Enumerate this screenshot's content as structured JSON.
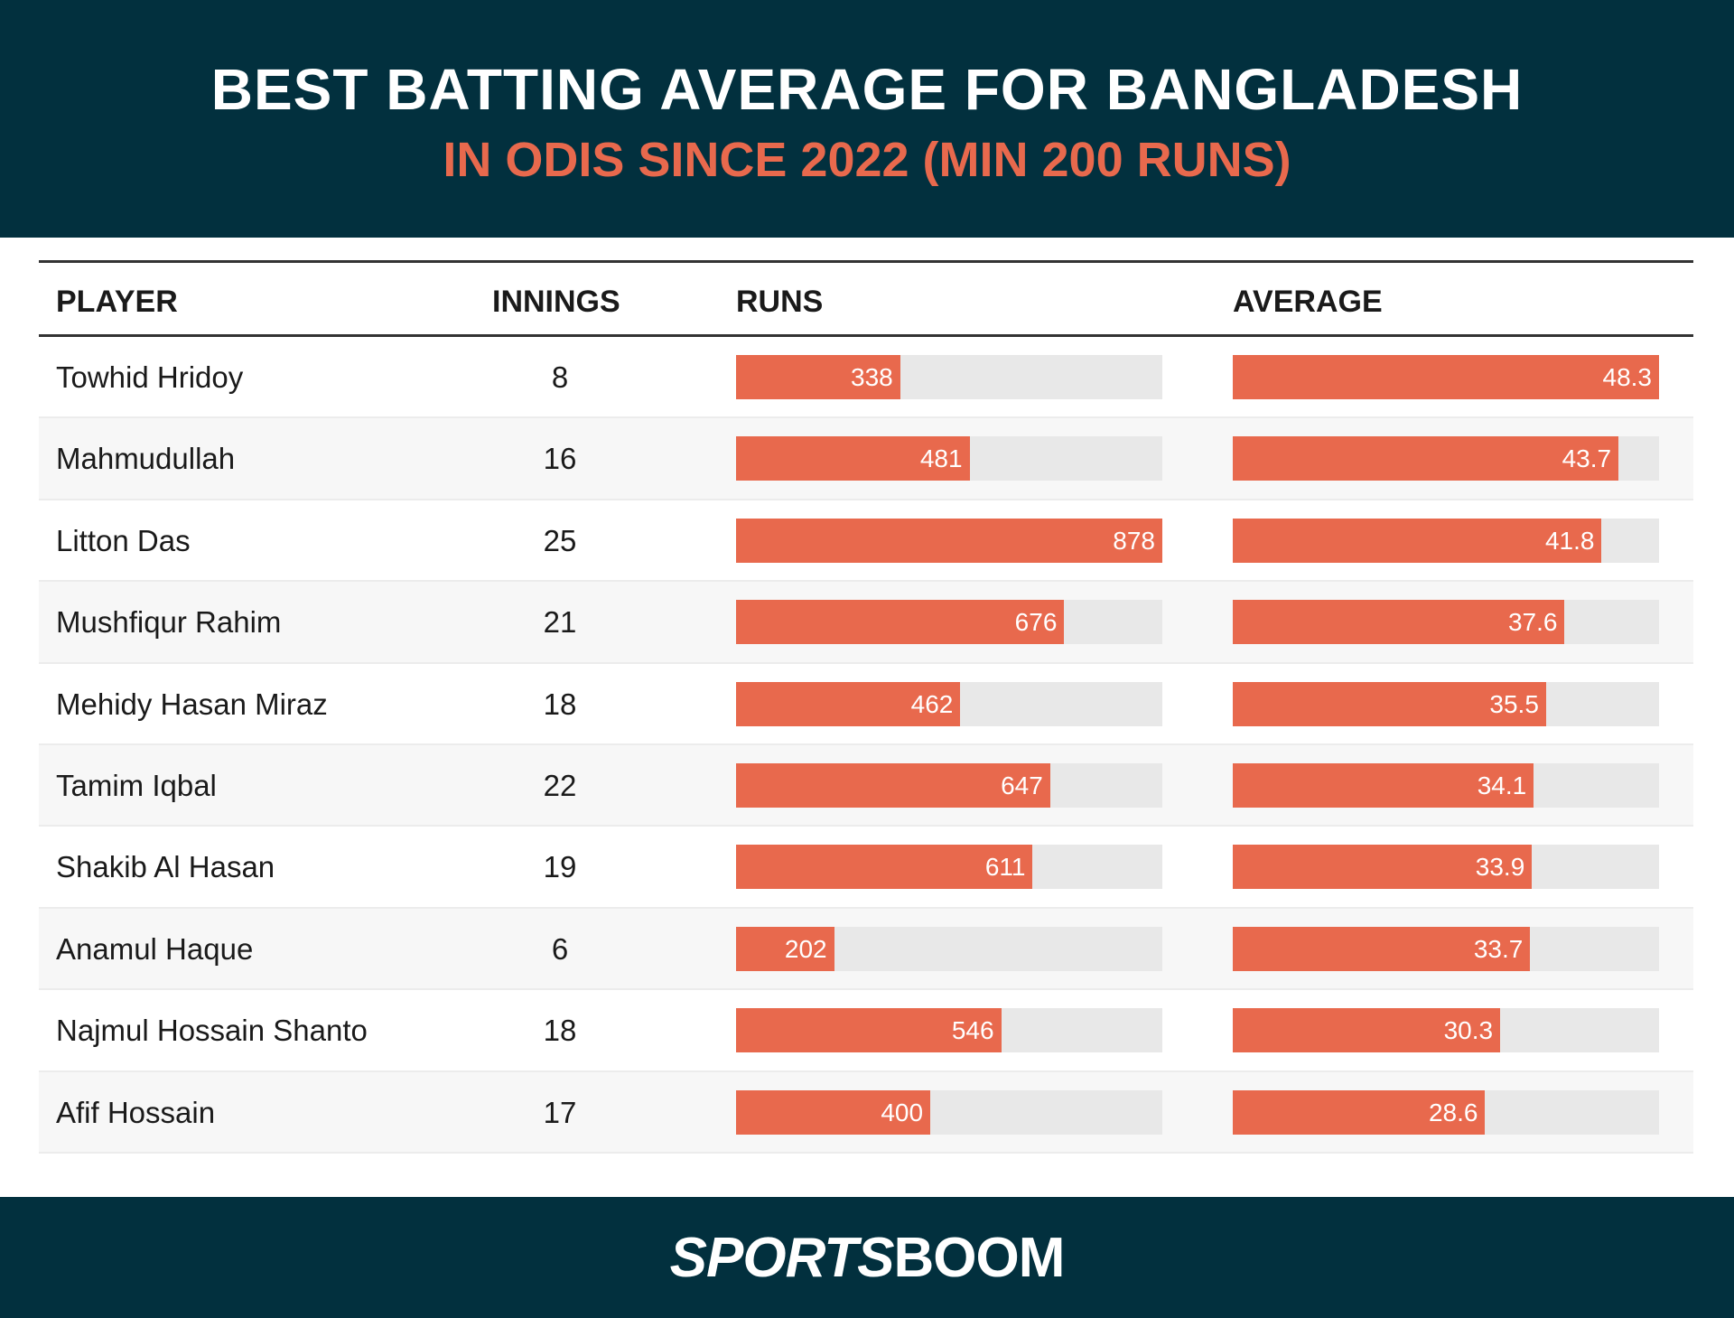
{
  "header": {
    "title": "BEST BATTING AVERAGE FOR BANGLADESH",
    "subtitle": "IN ODIS SINCE 2022 (MIN 200 RUNS)"
  },
  "columns": {
    "player": "PLAYER",
    "innings": "INNINGS",
    "runs": "RUNS",
    "average": "AVERAGE"
  },
  "colors": {
    "header_bg": "#02303e",
    "accent": "#e8694d",
    "track": "#e8e8e8"
  },
  "chart_data": {
    "type": "table",
    "title": "BEST BATTING AVERAGE FOR BANGLADESH",
    "subtitle": "IN ODIS SINCE 2022 (MIN 200 RUNS)",
    "columns": [
      "PLAYER",
      "INNINGS",
      "RUNS",
      "AVERAGE"
    ],
    "runs_max": 878,
    "average_max": 48.3,
    "rows": [
      {
        "player": "Towhid Hridoy",
        "innings": "8",
        "runs": "338",
        "average": "48.3"
      },
      {
        "player": "Mahmudullah",
        "innings": "16",
        "runs": "481",
        "average": "43.7"
      },
      {
        "player": "Litton Das",
        "innings": "25",
        "runs": "878",
        "average": "41.8"
      },
      {
        "player": "Mushfiqur Rahim",
        "innings": "21",
        "runs": "676",
        "average": "37.6"
      },
      {
        "player": "Mehidy Hasan Miraz",
        "innings": "18",
        "runs": "462",
        "average": "35.5"
      },
      {
        "player": "Tamim Iqbal",
        "innings": "22",
        "runs": "647",
        "average": "34.1"
      },
      {
        "player": "Shakib Al Hasan",
        "innings": "19",
        "runs": "611",
        "average": "33.9"
      },
      {
        "player": "Anamul Haque",
        "innings": "6",
        "runs": "202",
        "average": "33.7"
      },
      {
        "player": "Najmul Hossain Shanto",
        "innings": "18",
        "runs": "546",
        "average": "30.3"
      },
      {
        "player": "Afif Hossain",
        "innings": "17",
        "runs": "400",
        "average": "28.6"
      }
    ]
  },
  "footer": {
    "logo": "SPORTSBOOM"
  }
}
